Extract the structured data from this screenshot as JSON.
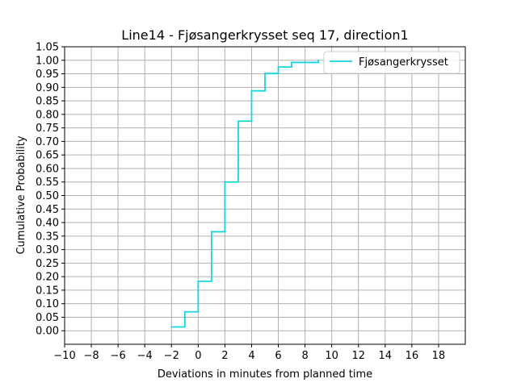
{
  "chart_data": {
    "type": "line",
    "title": "Line14 - Fjøsangerkrysset seq 17, direction1",
    "xlabel": "Deviations in minutes from planned time",
    "ylabel": "Cumulative Probability",
    "xlim": [
      -10,
      20
    ],
    "ylim": [
      -0.05,
      1.05
    ],
    "x_ticks": [
      "−10",
      "−8",
      "−6",
      "−4",
      "−2",
      "0",
      "2",
      "4",
      "6",
      "8",
      "10",
      "12",
      "14",
      "16",
      "18"
    ],
    "x_tick_values": [
      -10,
      -8,
      -6,
      -4,
      -2,
      0,
      2,
      4,
      6,
      8,
      10,
      12,
      14,
      16,
      18
    ],
    "y_ticks": [
      "0.00",
      "0.05",
      "0.10",
      "0.15",
      "0.20",
      "0.25",
      "0.30",
      "0.35",
      "0.40",
      "0.45",
      "0.50",
      "0.55",
      "0.60",
      "0.65",
      "0.70",
      "0.75",
      "0.80",
      "0.85",
      "0.90",
      "0.95",
      "1.00",
      "1.05"
    ],
    "y_tick_values": [
      0.0,
      0.05,
      0.1,
      0.15,
      0.2,
      0.25,
      0.3,
      0.35,
      0.4,
      0.45,
      0.5,
      0.55,
      0.6,
      0.65,
      0.7,
      0.75,
      0.8,
      0.85,
      0.9,
      0.95,
      1.0,
      1.05
    ],
    "grid": true,
    "legend_position": "top-right",
    "series": [
      {
        "name": "Fjøsangerkrysset",
        "color": "#17d4e0",
        "step": "post",
        "points": [
          {
            "x": -2,
            "y": 0.014
          },
          {
            "x": -1,
            "y": 0.07
          },
          {
            "x": 0,
            "y": 0.183
          },
          {
            "x": 1,
            "y": 0.366
          },
          {
            "x": 2,
            "y": 0.55
          },
          {
            "x": 3,
            "y": 0.775
          },
          {
            "x": 4,
            "y": 0.887
          },
          {
            "x": 5,
            "y": 0.951
          },
          {
            "x": 6,
            "y": 0.975
          },
          {
            "x": 7,
            "y": 0.992
          },
          {
            "x": 9,
            "y": 1.0
          }
        ]
      }
    ]
  }
}
